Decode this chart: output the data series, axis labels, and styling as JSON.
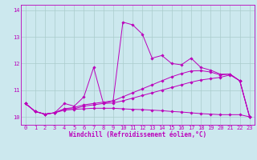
{
  "xlabel": "Windchill (Refroidissement éolien,°C)",
  "bg_color": "#cce8ee",
  "line_color": "#bb00bb",
  "grid_color": "#aacccc",
  "xlim": [
    -0.5,
    23.5
  ],
  "ylim": [
    9.7,
    14.2
  ],
  "yticks": [
    10,
    11,
    12,
    13,
    14
  ],
  "xticks": [
    0,
    1,
    2,
    3,
    4,
    5,
    6,
    7,
    8,
    9,
    10,
    11,
    12,
    13,
    14,
    15,
    16,
    17,
    18,
    19,
    20,
    21,
    22,
    23
  ],
  "series": [
    {
      "x": [
        0,
        1,
        2,
        3,
        4,
        5,
        6,
        7,
        8,
        9,
        10,
        11,
        12,
        13,
        14,
        15,
        16,
        17,
        18,
        19,
        20,
        21,
        22,
        23
      ],
      "y": [
        10.5,
        10.2,
        10.1,
        10.15,
        10.5,
        10.4,
        10.75,
        11.85,
        10.5,
        10.6,
        13.55,
        13.45,
        13.1,
        12.2,
        12.3,
        12.0,
        11.95,
        12.2,
        11.85,
        11.75,
        11.6,
        11.6,
        11.35,
        10.0
      ]
    },
    {
      "x": [
        0,
        1,
        2,
        3,
        4,
        5,
        6,
        7,
        8,
        9,
        10,
        11,
        12,
        13,
        14,
        15,
        16,
        17,
        18,
        19,
        20,
        21,
        22,
        23
      ],
      "y": [
        10.5,
        10.2,
        10.1,
        10.15,
        10.3,
        10.35,
        10.45,
        10.5,
        10.55,
        10.6,
        10.75,
        10.9,
        11.05,
        11.2,
        11.35,
        11.5,
        11.62,
        11.72,
        11.73,
        11.68,
        11.57,
        11.6,
        11.35,
        10.0
      ]
    },
    {
      "x": [
        0,
        1,
        2,
        3,
        4,
        5,
        6,
        7,
        8,
        9,
        10,
        11,
        12,
        13,
        14,
        15,
        16,
        17,
        18,
        19,
        20,
        21,
        22,
        23
      ],
      "y": [
        10.5,
        10.2,
        10.1,
        10.15,
        10.3,
        10.3,
        10.4,
        10.45,
        10.5,
        10.52,
        10.6,
        10.7,
        10.8,
        10.9,
        11.0,
        11.1,
        11.2,
        11.3,
        11.38,
        11.43,
        11.48,
        11.57,
        11.35,
        10.0
      ]
    },
    {
      "x": [
        0,
        1,
        2,
        3,
        4,
        5,
        6,
        7,
        8,
        9,
        10,
        11,
        12,
        13,
        14,
        15,
        16,
        17,
        18,
        19,
        20,
        21,
        22,
        23
      ],
      "y": [
        10.5,
        10.2,
        10.1,
        10.15,
        10.25,
        10.28,
        10.3,
        10.32,
        10.32,
        10.32,
        10.3,
        10.28,
        10.27,
        10.25,
        10.23,
        10.2,
        10.18,
        10.15,
        10.12,
        10.1,
        10.08,
        10.08,
        10.08,
        10.0
      ]
    }
  ]
}
